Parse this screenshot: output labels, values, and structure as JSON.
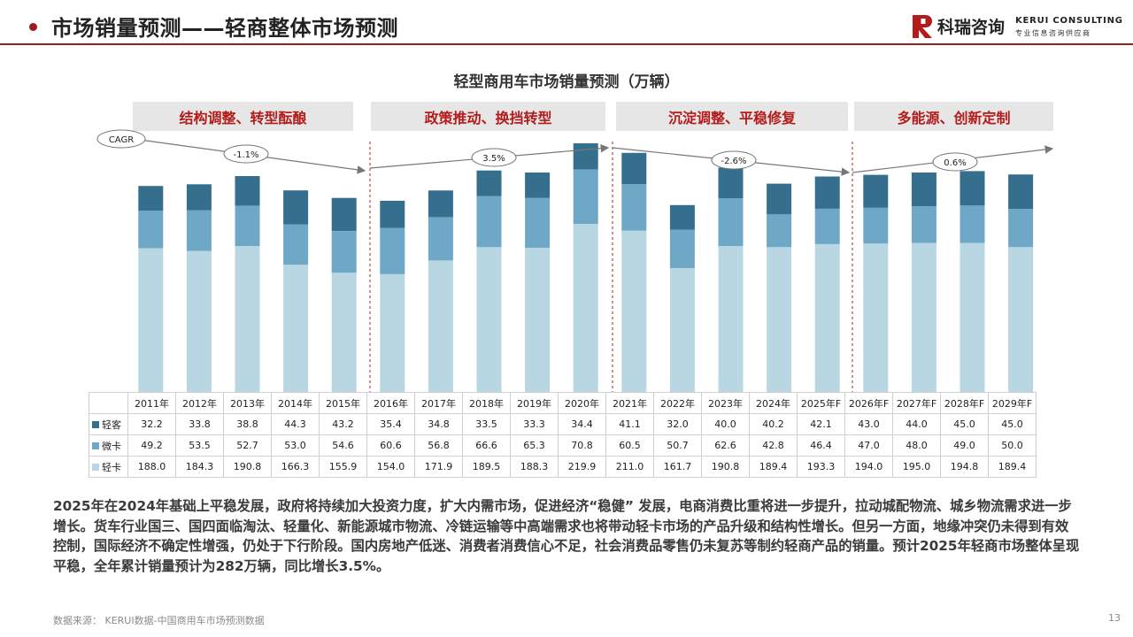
{
  "header": {
    "title": "市场销量预测——轻商整体市场预测",
    "logo_cn": "科瑞咨询",
    "logo_en": "KERUI CONSULTING",
    "logo_sub": "专业信息咨询供应商"
  },
  "colors": {
    "brand_red": "#9b1c1c",
    "light_truck": "#b9d6e3",
    "micro_truck": "#6fa8c6",
    "light_bus": "#356f8d",
    "phase_text": "#b41c1c",
    "phase_bg": "#e6e6e6"
  },
  "phases": [
    {
      "label": "结构调整、转型酝酿",
      "cagr": "-1.1%"
    },
    {
      "label": "政策推动、换挡转型",
      "cagr": "3.5%"
    },
    {
      "label": "沉淀调整、平稳修复",
      "cagr": "-2.6%"
    },
    {
      "label": "多能源、创新定制",
      "cagr": "0.6%"
    }
  ],
  "cagr_label": "CAGR",
  "chart_data": {
    "type": "bar",
    "stacked": true,
    "title": "轻型商用车市场销量预测（万辆）",
    "categories": [
      "2011年",
      "2012年",
      "2013年",
      "2014年",
      "2015年",
      "2016年",
      "2017年",
      "2018年",
      "2019年",
      "2020年",
      "2021年",
      "2022年",
      "2023年",
      "2024年",
      "2025年F",
      "2026年F",
      "2027年F",
      "2028年F",
      "2029年F"
    ],
    "series": [
      {
        "name": "轻卡",
        "values": [
          188.0,
          184.3,
          190.8,
          166.3,
          155.9,
          154.0,
          171.9,
          189.5,
          188.3,
          219.9,
          211.0,
          161.7,
          190.8,
          189.4,
          193.3,
          194.0,
          195.0,
          194.8,
          189.4
        ]
      },
      {
        "name": "微卡",
        "values": [
          49.2,
          53.5,
          52.7,
          53.0,
          54.6,
          60.6,
          56.8,
          66.6,
          65.3,
          70.8,
          60.5,
          50.7,
          62.6,
          42.8,
          46.4,
          47.0,
          48.0,
          49.0,
          50.0
        ]
      },
      {
        "name": "轻客",
        "values": [
          32.2,
          33.8,
          38.8,
          44.3,
          43.2,
          35.4,
          34.8,
          33.5,
          33.3,
          34.4,
          41.1,
          32.0,
          40.0,
          40.2,
          42.1,
          43.0,
          44.0,
          45.0,
          45.0
        ]
      }
    ],
    "table_rows": [
      {
        "label": "轻客",
        "values": [
          "32.2",
          "33.8",
          "38.8",
          "44.3",
          "43.2",
          "35.4",
          "34.8",
          "33.5",
          "33.3",
          "34.4",
          "41.1",
          "32.0",
          "40.0",
          "40.2",
          "42.1",
          "43.0",
          "44.0",
          "45.0",
          "45.0"
        ]
      },
      {
        "label": "微卡",
        "values": [
          "49.2",
          "53.5",
          "52.7",
          "53.0",
          "54.6",
          "60.6",
          "56.8",
          "66.6",
          "65.3",
          "70.8",
          "60.5",
          "50.7",
          "62.6",
          "42.8",
          "46.4",
          "47.0",
          "48.0",
          "49.0",
          "50.0"
        ]
      },
      {
        "label": "轻卡",
        "values": [
          "188.0",
          "184.3",
          "190.8",
          "166.3",
          "155.9",
          "154.0",
          "171.9",
          "189.5",
          "188.3",
          "219.9",
          "211.0",
          "161.7",
          "190.8",
          "189.4",
          "193.3",
          "194.0",
          "195.0",
          "194.8",
          "189.4"
        ]
      }
    ],
    "ylim": [
      0,
      330
    ]
  },
  "paragraph": "2025年在2024年基础上平稳发展，政府将持续加大投资力度，扩大内需市场，促进经济“稳健” 发展，电商消费比重将进一步提升，拉动城配物流、城乡物流需求进一步增长。货车行业国三、国四面临淘汰、轻量化、新能源城市物流、冷链运输等中高端需求也将带动轻卡市场的产品升级和结构性增长。但另一方面，地缘冲突仍未得到有效控制，国际经济不确定性增强，仍处于下行阶段。国内房地产低迷、消费者消费信心不足，社会消费品零售仍未复苏等制约轻商产品的销量。预计2025年轻商市场整体呈现平稳，全年累计销量预计为282万辆，同比增长3.5%。",
  "source": "数据来源： KERUI数据-中国商用车市场预测数据",
  "page_number": "13"
}
